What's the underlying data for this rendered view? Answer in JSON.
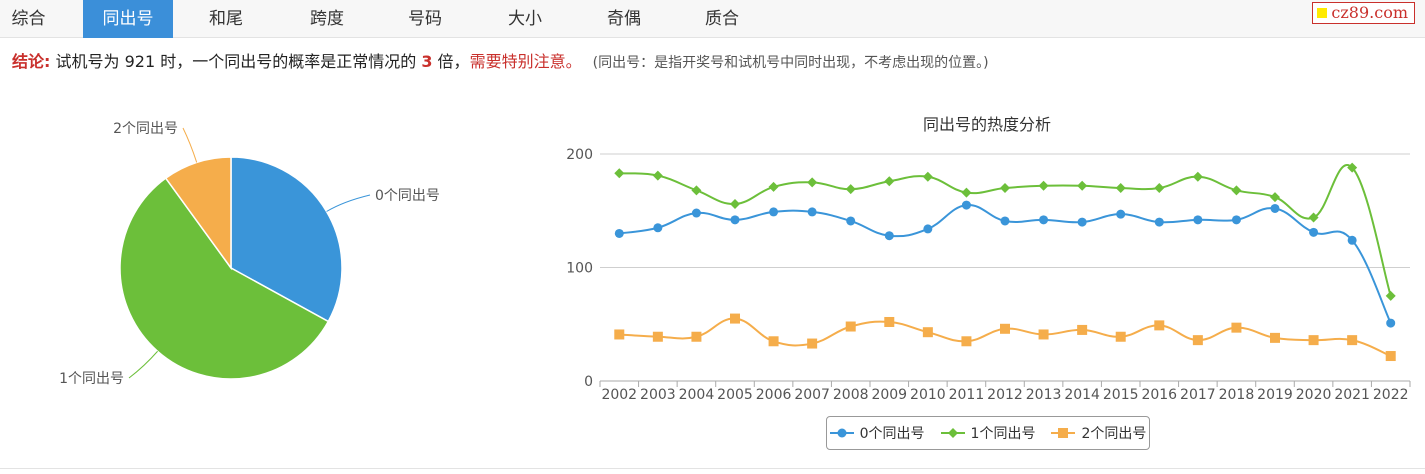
{
  "tabs": [
    {
      "label": "综合",
      "active": false
    },
    {
      "label": "同出号",
      "active": true
    },
    {
      "label": "和尾",
      "active": false
    },
    {
      "label": "跨度",
      "active": false
    },
    {
      "label": "号码",
      "active": false
    },
    {
      "label": "大小",
      "active": false
    },
    {
      "label": "奇偶",
      "active": false
    },
    {
      "label": "质合",
      "active": false
    }
  ],
  "site": {
    "name": "cz89.com"
  },
  "conclusion": {
    "label": "结论:",
    "text1": "试机号为 921 时，一个同出号的概率是正常情况的",
    "multiple": "3",
    "text2": "倍，",
    "warning": "需要特别注意。",
    "note": "(同出号：是指开奖号和试机号中同时出现，不考虑出现的位置。)"
  },
  "colors": {
    "blue": "#3a95d9",
    "green": "#6cbf3a",
    "orange": "#f5ad4b",
    "tab_active": "#3b8fd9",
    "accent_red": "#c9302c"
  },
  "chart_data": [
    {
      "type": "pie",
      "labels": [
        "0个同出号",
        "1个同出号",
        "2个同出号"
      ],
      "values": [
        33,
        57,
        10
      ],
      "colors": [
        "#3a95d9",
        "#6cbf3a",
        "#f5ad4b"
      ]
    },
    {
      "type": "line",
      "title": "同出号的热度分析",
      "categories": [
        "2002",
        "2003",
        "2004",
        "2005",
        "2006",
        "2007",
        "2008",
        "2009",
        "2010",
        "2011",
        "2012",
        "2013",
        "2014",
        "2015",
        "2016",
        "2017",
        "2018",
        "2019",
        "2020",
        "2021",
        "2022"
      ],
      "ylim": [
        0,
        200
      ],
      "yticks": [
        "0",
        "100",
        "200"
      ],
      "grid": true,
      "legend": "bottom-center",
      "series": [
        {
          "name": "0个同出号",
          "color": "#3a95d9",
          "marker": "circle",
          "values": [
            130,
            135,
            148,
            142,
            149,
            149,
            141,
            128,
            134,
            155,
            141,
            142,
            140,
            147,
            140,
            142,
            142,
            152,
            131,
            124,
            51
          ]
        },
        {
          "name": "1个同出号",
          "color": "#6cbf3a",
          "marker": "diamond",
          "values": [
            183,
            181,
            168,
            156,
            171,
            175,
            169,
            176,
            180,
            166,
            170,
            172,
            172,
            170,
            170,
            180,
            168,
            162,
            144,
            188,
            75
          ]
        },
        {
          "name": "2个同出号",
          "color": "#f5ad4b",
          "marker": "square",
          "values": [
            41,
            39,
            39,
            55,
            35,
            33,
            48,
            52,
            43,
            35,
            46,
            41,
            45,
            39,
            49,
            36,
            47,
            38,
            36,
            36,
            22
          ]
        }
      ]
    }
  ]
}
